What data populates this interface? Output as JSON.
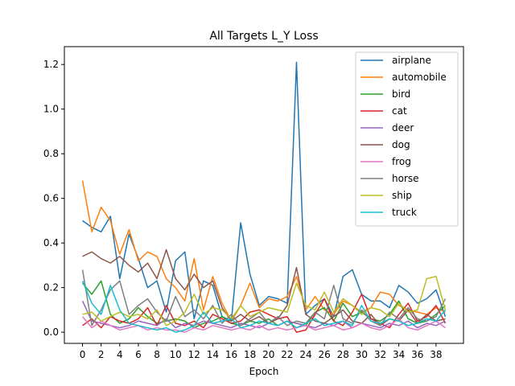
{
  "chart_data": {
    "type": "line",
    "title": "All Targets L_Y Loss",
    "xlabel": "Epoch",
    "ylabel": "",
    "xlim": [
      -1.95,
      40.95
    ],
    "ylim": [
      -0.05,
      1.28
    ],
    "xticks": [
      0,
      2,
      4,
      6,
      8,
      10,
      12,
      14,
      16,
      18,
      20,
      22,
      24,
      26,
      28,
      30,
      32,
      34,
      36,
      38
    ],
    "yticks": [
      0.0,
      0.2,
      0.4,
      0.6,
      0.8,
      1.0,
      1.2
    ],
    "ytick_labels": [
      "0.0",
      "0.2",
      "0.4",
      "0.6",
      "0.8",
      "1.0",
      "1.2"
    ],
    "grid": false,
    "legend_position": "top-right",
    "x": [
      0,
      1,
      2,
      3,
      4,
      5,
      6,
      7,
      8,
      9,
      10,
      11,
      12,
      13,
      14,
      15,
      16,
      17,
      18,
      19,
      20,
      21,
      22,
      23,
      24,
      25,
      26,
      27,
      28,
      29,
      30,
      31,
      32,
      33,
      34,
      35,
      36,
      37,
      38,
      39
    ],
    "series": [
      {
        "name": "airplane",
        "color": "#1f77b4",
        "values": [
          0.5,
          0.47,
          0.45,
          0.52,
          0.24,
          0.44,
          0.33,
          0.2,
          0.23,
          0.09,
          0.32,
          0.36,
          0.06,
          0.23,
          0.21,
          0.07,
          0.05,
          0.49,
          0.26,
          0.12,
          0.16,
          0.15,
          0.13,
          1.21,
          0.08,
          0.12,
          0.15,
          0.07,
          0.25,
          0.28,
          0.17,
          0.14,
          0.14,
          0.11,
          0.21,
          0.18,
          0.13,
          0.15,
          0.19,
          0.07
        ]
      },
      {
        "name": "automobile",
        "color": "#ff7f0e",
        "values": [
          0.68,
          0.45,
          0.56,
          0.5,
          0.35,
          0.46,
          0.32,
          0.36,
          0.34,
          0.24,
          0.2,
          0.14,
          0.33,
          0.1,
          0.25,
          0.13,
          0.05,
          0.12,
          0.22,
          0.11,
          0.15,
          0.14,
          0.16,
          0.25,
          0.1,
          0.16,
          0.1,
          0.08,
          0.14,
          0.12,
          0.09,
          0.11,
          0.18,
          0.17,
          0.12,
          0.1,
          0.09,
          0.08,
          0.11,
          0.09
        ]
      },
      {
        "name": "bird",
        "color": "#2ca02c",
        "values": [
          0.22,
          0.17,
          0.23,
          0.08,
          0.04,
          0.06,
          0.11,
          0.07,
          0.04,
          0.05,
          0.06,
          0.05,
          0.02,
          0.04,
          0.05,
          0.07,
          0.04,
          0.03,
          0.05,
          0.04,
          0.06,
          0.03,
          0.05,
          0.04,
          0.03,
          0.09,
          0.11,
          0.05,
          0.13,
          0.07,
          0.09,
          0.06,
          0.05,
          0.08,
          0.14,
          0.06,
          0.04,
          0.05,
          0.08,
          0.12
        ]
      },
      {
        "name": "cat",
        "color": "#d62728",
        "values": [
          0.03,
          0.06,
          0.02,
          0.07,
          0.05,
          0.04,
          0.06,
          0.11,
          0.03,
          0.12,
          0.04,
          0.03,
          0.05,
          0.02,
          0.08,
          0.06,
          0.04,
          0.05,
          0.09,
          0.1,
          0.08,
          0.06,
          0.07,
          0.0,
          0.01,
          0.08,
          0.15,
          0.05,
          0.03,
          0.09,
          0.17,
          0.06,
          0.04,
          0.02,
          0.08,
          0.13,
          0.05,
          0.07,
          0.12,
          0.04
        ]
      },
      {
        "name": "deer",
        "color": "#9467bd",
        "values": [
          0.14,
          0.05,
          0.04,
          0.03,
          0.02,
          0.03,
          0.05,
          0.04,
          0.03,
          0.06,
          0.02,
          0.04,
          0.03,
          0.05,
          0.04,
          0.03,
          0.02,
          0.04,
          0.03,
          0.02,
          0.04,
          0.03,
          0.05,
          0.04,
          0.03,
          0.02,
          0.04,
          0.03,
          0.05,
          0.02,
          0.04,
          0.03,
          0.02,
          0.04,
          0.03,
          0.05,
          0.02,
          0.04,
          0.03,
          0.05
        ]
      },
      {
        "name": "dog",
        "color": "#8c564b",
        "values": [
          0.34,
          0.36,
          0.33,
          0.31,
          0.34,
          0.3,
          0.27,
          0.31,
          0.24,
          0.37,
          0.24,
          0.19,
          0.26,
          0.2,
          0.23,
          0.11,
          0.05,
          0.08,
          0.05,
          0.07,
          0.04,
          0.06,
          0.12,
          0.29,
          0.08,
          0.05,
          0.04,
          0.07,
          0.1,
          0.05,
          0.04,
          0.08,
          0.03,
          0.06,
          0.05,
          0.1,
          0.04,
          0.08,
          0.05,
          0.06
        ]
      },
      {
        "name": "frog",
        "color": "#e377c2",
        "values": [
          0.07,
          0.02,
          0.05,
          0.03,
          0.01,
          0.02,
          0.03,
          0.01,
          0.02,
          0.01,
          0.01,
          0.0,
          0.02,
          0.01,
          0.03,
          0.02,
          0.01,
          0.02,
          0.01,
          0.03,
          0.01,
          0.02,
          0.01,
          0.02,
          0.03,
          0.01,
          0.02,
          0.03,
          0.01,
          0.02,
          0.04,
          0.02,
          0.01,
          0.03,
          0.06,
          0.02,
          0.01,
          0.03,
          0.05,
          0.02
        ]
      },
      {
        "name": "horse",
        "color": "#7f7f7f",
        "values": [
          0.28,
          0.03,
          0.1,
          0.19,
          0.23,
          0.08,
          0.12,
          0.15,
          0.09,
          0.05,
          0.16,
          0.07,
          0.1,
          0.06,
          0.12,
          0.04,
          0.08,
          0.03,
          0.06,
          0.09,
          0.04,
          0.07,
          0.03,
          0.05,
          0.04,
          0.09,
          0.06,
          0.21,
          0.06,
          0.04,
          0.1,
          0.05,
          0.03,
          0.09,
          0.06,
          0.11,
          0.06,
          0.05,
          0.07,
          0.15
        ]
      },
      {
        "name": "ship",
        "color": "#bcbd22",
        "values": [
          0.08,
          0.09,
          0.05,
          0.07,
          0.09,
          0.07,
          0.08,
          0.06,
          0.1,
          0.03,
          0.05,
          0.09,
          0.17,
          0.08,
          0.11,
          0.1,
          0.06,
          0.12,
          0.07,
          0.09,
          0.11,
          0.1,
          0.09,
          0.22,
          0.12,
          0.1,
          0.18,
          0.09,
          0.15,
          0.12,
          0.08,
          0.11,
          0.1,
          0.07,
          0.13,
          0.09,
          0.1,
          0.24,
          0.25,
          0.1
        ]
      },
      {
        "name": "truck",
        "color": "#17becf",
        "values": [
          0.23,
          0.13,
          0.08,
          0.21,
          0.1,
          0.04,
          0.03,
          0.02,
          0.01,
          0.02,
          0.0,
          0.01,
          0.03,
          0.09,
          0.04,
          0.05,
          0.06,
          0.02,
          0.03,
          0.05,
          0.04,
          0.03,
          0.05,
          0.02,
          0.04,
          0.06,
          0.03,
          0.04,
          0.05,
          0.03,
          0.12,
          0.05,
          0.04,
          0.06,
          0.05,
          0.03,
          0.04,
          0.06,
          0.05,
          0.1
        ]
      }
    ]
  }
}
